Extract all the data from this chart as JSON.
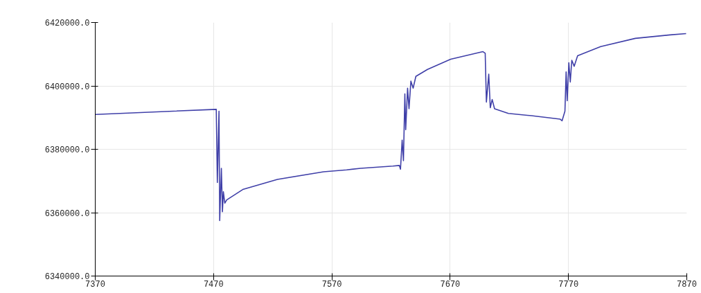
{
  "chart_data": {
    "type": "line",
    "xlim": [
      7370,
      7870
    ],
    "ylim": [
      6340000,
      6420000
    ],
    "xticks": [
      7370,
      7470,
      7570,
      7670,
      7770,
      7870
    ],
    "yticks": [
      {
        "value": 6340000,
        "label": "6340000.0"
      },
      {
        "value": 6360000,
        "label": "6360000.0"
      },
      {
        "value": 6380000,
        "label": "6380000.0"
      },
      {
        "value": 6400000,
        "label": "6400000.0"
      },
      {
        "value": 6420000,
        "label": "6420000.0"
      }
    ],
    "grid": true,
    "line_style": "solid",
    "marker": "none",
    "series": [
      {
        "color": "#3f3fa8",
        "x": [
          7370,
          7472.3,
          7473.2,
          7474.6,
          7475.2,
          7476.6,
          7477.5,
          7478.3,
          7479.5,
          7481.1,
          7494.7,
          7524,
          7563,
          7582.5,
          7594.2,
          7621.6,
          7627,
          7628,
          7629.4,
          7630.5,
          7631.7,
          7632.4,
          7634,
          7635.2,
          7636.8,
          7638.7,
          7641,
          7650.8,
          7670.4,
          7697.7,
          7699.6,
          7700.6,
          7702.6,
          7703.9,
          7705.5,
          7707.5,
          7719.2,
          7738.7,
          7763,
          7764.6,
          7767,
          7768,
          7768.9,
          7770.3,
          7771.5,
          7772.8,
          7774.8,
          7777.7,
          7797.2,
          7826.5,
          7855.8,
          7869.4
        ],
        "values": [
          6391000,
          6392600,
          6369500,
          6392000,
          6357500,
          6374000,
          6360300,
          6366600,
          6363000,
          6364000,
          6367300,
          6370500,
          6372900,
          6373500,
          6374000,
          6374700,
          6374900,
          6373700,
          6382900,
          6376400,
          6397500,
          6386200,
          6399300,
          6392800,
          6401500,
          6399300,
          6403000,
          6405200,
          6408400,
          6410800,
          6410300,
          6394900,
          6403700,
          6393100,
          6395700,
          6392800,
          6391300,
          6390600,
          6389500,
          6389000,
          6392000,
          6404400,
          6395300,
          6407300,
          6401200,
          6408100,
          6406200,
          6409500,
          6412400,
          6415000,
          6416100,
          6416500
        ]
      }
    ]
  }
}
